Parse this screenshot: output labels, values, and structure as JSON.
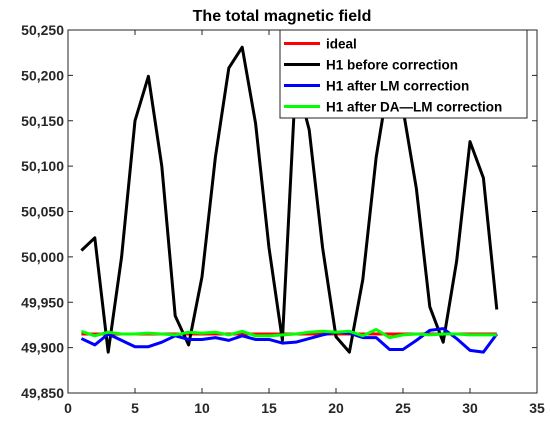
{
  "chart_data": {
    "type": "line",
    "title": "The total magnetic field",
    "xlabel": "",
    "ylabel": "",
    "xlim": [
      0,
      35
    ],
    "ylim": [
      49850,
      50250
    ],
    "x_ticks": [
      0,
      5,
      10,
      15,
      20,
      25,
      30,
      35
    ],
    "x_tick_labels": [
      "0",
      "5",
      "10",
      "15",
      "20",
      "25",
      "30",
      "35"
    ],
    "y_ticks": [
      49850,
      49900,
      49950,
      50000,
      50050,
      50100,
      50150,
      50200,
      50250
    ],
    "y_tick_labels": [
      "49,850",
      "49,900",
      "49,950",
      "50,000",
      "50,050",
      "50,100",
      "50,150",
      "50,200",
      "50,250"
    ],
    "grid": false,
    "legend_position": "top-right",
    "x": [
      1,
      2,
      3,
      4,
      5,
      6,
      7,
      8,
      9,
      10,
      11,
      12,
      13,
      14,
      15,
      16,
      17,
      18,
      19,
      20,
      21,
      22,
      23,
      24,
      25,
      26,
      27,
      28,
      29,
      30,
      31,
      32
    ],
    "series": [
      {
        "name": "ideal",
        "color": "#ff0000",
        "values": [
          49915,
          49915,
          49915,
          49915,
          49915,
          49915,
          49915,
          49915,
          49915,
          49915,
          49915,
          49915,
          49915,
          49915,
          49915,
          49915,
          49915,
          49915,
          49915,
          49915,
          49915,
          49915,
          49915,
          49915,
          49915,
          49915,
          49915,
          49915,
          49915,
          49915,
          49915,
          49915
        ]
      },
      {
        "name": "H1 before correction",
        "color": "#000000",
        "values": [
          50007,
          50021,
          49895,
          50000,
          50150,
          50199,
          50100,
          49935,
          49903,
          49978,
          50110,
          50208,
          50231,
          50147,
          50010,
          49908,
          50197,
          50140,
          50010,
          49912,
          49895,
          49975,
          50110,
          50200,
          50163,
          50075,
          49945,
          49906,
          49995,
          50127,
          50087,
          49942
        ]
      },
      {
        "name": "H1 after LM correction",
        "color": "#0000ff",
        "values": [
          49910,
          49903,
          49915,
          49908,
          49901,
          49901,
          49906,
          49913,
          49909,
          49909,
          49911,
          49908,
          49913,
          49909,
          49909,
          49905,
          49906,
          49910,
          49914,
          49917,
          49916,
          49911,
          49911,
          49898,
          49898,
          49908,
          49919,
          49921,
          49910,
          49897,
          49895,
          49915
        ]
      },
      {
        "name": "H1 after DA—LM correction",
        "color": "#00ff00",
        "values": [
          49918,
          49913,
          49917,
          49915,
          49915,
          49916,
          49915,
          49914,
          49917,
          49916,
          49917,
          49914,
          49918,
          49913,
          49913,
          49914,
          49915,
          49917,
          49918,
          49917,
          49918,
          49913,
          49920,
          49911,
          49914,
          49915,
          49914,
          49915,
          49915,
          49914,
          49914,
          49914
        ]
      }
    ]
  }
}
